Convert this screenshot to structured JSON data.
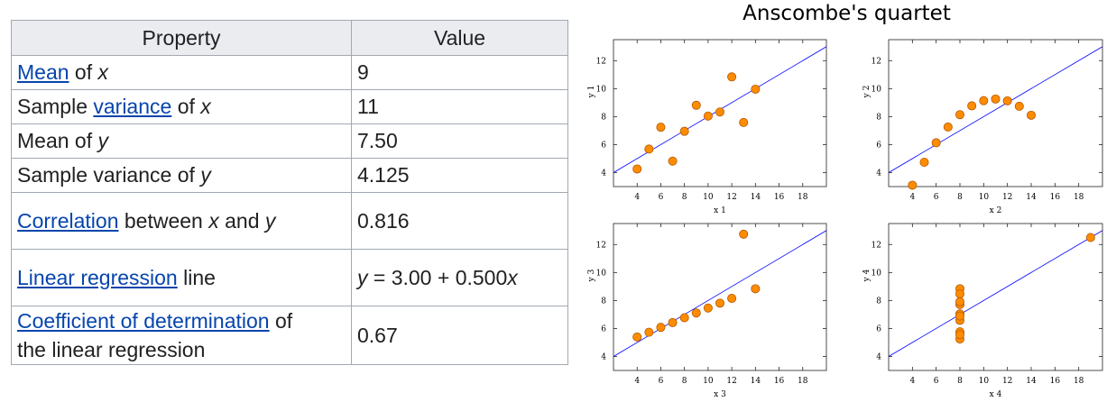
{
  "table": {
    "headers": [
      "Property",
      "Value"
    ],
    "rows": [
      {
        "property": {
          "link": "Mean",
          "pre": "",
          "mid": " of ",
          "var": "x",
          "post": ""
        },
        "value": "9"
      },
      {
        "property": {
          "pre": "Sample ",
          "link": "variance",
          "mid": " of ",
          "var": "x",
          "post": ""
        },
        "value": "11"
      },
      {
        "property": {
          "pre": "Mean of ",
          "var": "y"
        },
        "value": "7.50"
      },
      {
        "property": {
          "pre": "Sample variance of ",
          "var": "y"
        },
        "value": "4.125"
      },
      {
        "property": {
          "link": "Correlation",
          "mid": " between ",
          "var1": "x",
          "and": " and ",
          "var2": "y"
        },
        "value": "0.816"
      },
      {
        "property": {
          "link": "Linear regression",
          "post": " line"
        },
        "value": {
          "lhs": "y",
          "eq": " = 3.00 + 0.500",
          "rhs": "x"
        }
      },
      {
        "property": {
          "link": "Coefficient of determination",
          "post": " of",
          "line2": "the linear regression"
        },
        "value": "0.67"
      }
    ]
  },
  "chart_title": "Anscombe's quartet",
  "colors": {
    "point_fill": "#ff8c00",
    "point_stroke": "#b35900",
    "line": "#0000ff",
    "border": "#222222"
  },
  "chart_data": [
    {
      "type": "scatter",
      "xlabel": "x 1",
      "ylabel": "y 1",
      "xlim": [
        2,
        20
      ],
      "ylim": [
        3,
        13.5
      ],
      "xticks": [
        4,
        6,
        8,
        10,
        12,
        14,
        16,
        18
      ],
      "yticks": [
        4,
        6,
        8,
        10,
        12
      ],
      "x": [
        10,
        8,
        13,
        9,
        11,
        14,
        6,
        4,
        12,
        7,
        5
      ],
      "y": [
        8.04,
        6.95,
        7.58,
        8.81,
        8.33,
        9.96,
        7.24,
        4.26,
        10.84,
        4.82,
        5.68
      ],
      "regression": {
        "intercept": 3.0,
        "slope": 0.5
      }
    },
    {
      "type": "scatter",
      "xlabel": "x 2",
      "ylabel": "y 2",
      "xlim": [
        2,
        20
      ],
      "ylim": [
        3,
        13.5
      ],
      "xticks": [
        4,
        6,
        8,
        10,
        12,
        14,
        16,
        18
      ],
      "yticks": [
        4,
        6,
        8,
        10,
        12
      ],
      "x": [
        10,
        8,
        13,
        9,
        11,
        14,
        6,
        4,
        12,
        7,
        5
      ],
      "y": [
        9.14,
        8.14,
        8.74,
        8.77,
        9.26,
        8.1,
        6.13,
        3.1,
        9.13,
        7.26,
        4.74
      ],
      "regression": {
        "intercept": 3.0,
        "slope": 0.5
      }
    },
    {
      "type": "scatter",
      "xlabel": "x 3",
      "ylabel": "y 3",
      "xlim": [
        2,
        20
      ],
      "ylim": [
        3,
        13.5
      ],
      "xticks": [
        4,
        6,
        8,
        10,
        12,
        14,
        16,
        18
      ],
      "yticks": [
        4,
        6,
        8,
        10,
        12
      ],
      "x": [
        10,
        8,
        13,
        9,
        11,
        14,
        6,
        4,
        12,
        7,
        5
      ],
      "y": [
        7.46,
        6.77,
        12.74,
        7.11,
        7.81,
        8.84,
        6.08,
        5.39,
        8.15,
        6.42,
        5.73
      ],
      "regression": {
        "intercept": 3.0,
        "slope": 0.5
      }
    },
    {
      "type": "scatter",
      "xlabel": "x 4",
      "ylabel": "y 4",
      "xlim": [
        2,
        20
      ],
      "ylim": [
        3,
        13.5
      ],
      "xticks": [
        4,
        6,
        8,
        10,
        12,
        14,
        16,
        18
      ],
      "yticks": [
        4,
        6,
        8,
        10,
        12
      ],
      "x": [
        8,
        8,
        8,
        8,
        8,
        8,
        8,
        19,
        8,
        8,
        8
      ],
      "y": [
        6.58,
        5.76,
        7.71,
        8.84,
        8.47,
        7.04,
        5.25,
        12.5,
        5.56,
        7.91,
        6.89
      ],
      "regression": {
        "intercept": 3.0,
        "slope": 0.5
      }
    }
  ]
}
